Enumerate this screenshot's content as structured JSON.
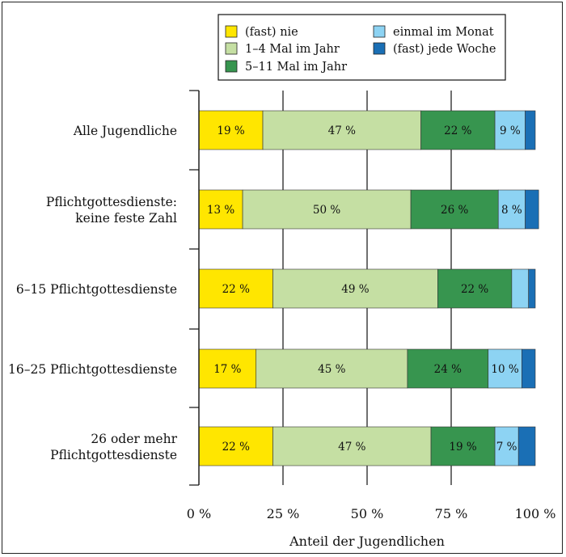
{
  "chart_data": {
    "type": "bar",
    "orientation": "horizontal",
    "stacked": true,
    "categories": [
      [
        "Alle Jugendliche"
      ],
      [
        "Pflichtgottesdienste:",
        "keine feste Zahl"
      ],
      [
        "6–15 Pflichtgottesdienste"
      ],
      [
        "16–25 Pflichtgottesdienste"
      ],
      [
        "26 oder mehr",
        "Pflichtgottesdienste"
      ]
    ],
    "series": [
      {
        "name": "(fast) nie",
        "color": "#FFE600",
        "values": [
          19,
          13,
          22,
          17,
          22
        ],
        "labels": [
          "19 %",
          "13 %",
          "22 %",
          "17 %",
          "22 %"
        ]
      },
      {
        "name": "1–4 Mal im Jahr",
        "color": "#C5DFA3",
        "values": [
          47,
          50,
          49,
          45,
          47
        ],
        "labels": [
          "47 %",
          "50 %",
          "49 %",
          "45 %",
          "47 %"
        ]
      },
      {
        "name": "5–11 Mal im Jahr",
        "color": "#37954F",
        "values": [
          22,
          26,
          22,
          24,
          19
        ],
        "labels": [
          "22 %",
          "26 %",
          "22 %",
          "24 %",
          "19 %"
        ]
      },
      {
        "name": "einmal im Monat",
        "color": "#8DD3F3",
        "values": [
          9,
          8,
          5,
          10,
          7
        ],
        "labels": [
          "9 %",
          "8 %",
          "",
          "10 %",
          "7 %"
        ]
      },
      {
        "name": "(fast) jede Woche",
        "color": "#1A6FB5",
        "values": [
          3,
          4,
          2,
          4,
          5
        ],
        "labels": [
          "",
          "",
          "",
          "",
          ""
        ]
      }
    ],
    "xlim": [
      0,
      100
    ],
    "xticks": [
      "0 %",
      "25 %",
      "50 %",
      "75 %",
      "100 %"
    ],
    "xlabel": "Anteil der Jugendlichen",
    "grid": "vertical",
    "legend": {
      "placement": "top",
      "columns": 2,
      "order": [
        0,
        1,
        2,
        3,
        4
      ]
    }
  }
}
